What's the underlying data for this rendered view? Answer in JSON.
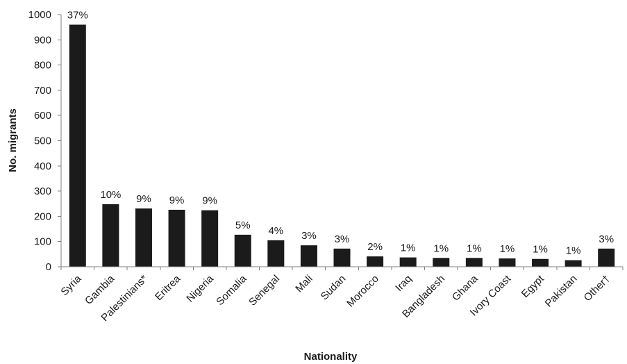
{
  "chart_data": {
    "type": "bar",
    "title": "",
    "xlabel": "Nationality",
    "ylabel": "No. migrants",
    "ylim": [
      0,
      1000
    ],
    "yticks": [
      0,
      100,
      200,
      300,
      400,
      500,
      600,
      700,
      800,
      900,
      1000
    ],
    "grid": false,
    "legend": "none",
    "bar_color": "#1b1b1b",
    "categories": [
      "Syria",
      "Gambia",
      "Palestinians*",
      "Eritrea",
      "Nigeria",
      "Somalia",
      "Senegal",
      "Mali",
      "Sudan",
      "Morocco",
      "Iraq",
      "Bangladesh",
      "Ghana",
      "Ivory Coast",
      "Egypt",
      "Pakistan",
      "Other†"
    ],
    "values": [
      960,
      248,
      231,
      226,
      224,
      127,
      105,
      85,
      72,
      41,
      37,
      35,
      35,
      33,
      31,
      26,
      72
    ],
    "data_labels": [
      "37%",
      "10%",
      "9%",
      "9%",
      "9%",
      "5%",
      "4%",
      "3%",
      "3%",
      "2%",
      "1%",
      "1%",
      "1%",
      "1%",
      "1%",
      "1%",
      "3%"
    ]
  }
}
